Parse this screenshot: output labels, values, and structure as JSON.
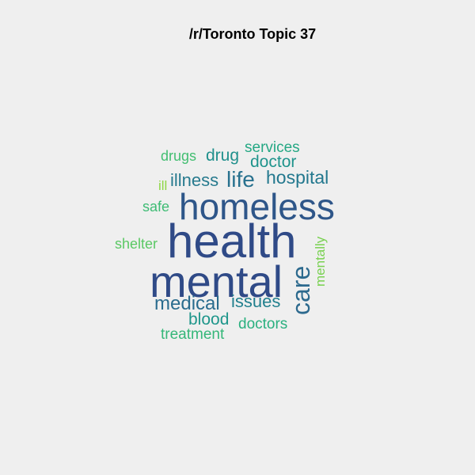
{
  "title": "/r/Toronto Topic 37",
  "words": [
    {
      "text": "health",
      "weight": 1.0,
      "color": "#2f4a87",
      "rotated": false
    },
    {
      "text": "mental",
      "weight": 0.95,
      "color": "#2f4a87",
      "rotated": false
    },
    {
      "text": "homeless",
      "weight": 0.78,
      "color": "#2e5689",
      "rotated": false
    },
    {
      "text": "care",
      "weight": 0.52,
      "color": "#2d6a8e",
      "rotated": true
    },
    {
      "text": "life",
      "weight": 0.4,
      "color": "#28718e",
      "rotated": false
    },
    {
      "text": "medical",
      "weight": 0.38,
      "color": "#2a6c8e",
      "rotated": false
    },
    {
      "text": "hospital",
      "weight": 0.36,
      "color": "#23788e",
      "rotated": false
    },
    {
      "text": "issues",
      "weight": 0.34,
      "color": "#22808e",
      "rotated": false
    },
    {
      "text": "illness",
      "weight": 0.33,
      "color": "#277a8e",
      "rotated": false
    },
    {
      "text": "doctor",
      "weight": 0.32,
      "color": "#1f948c",
      "rotated": false
    },
    {
      "text": "drug",
      "weight": 0.31,
      "color": "#20908c",
      "rotated": false
    },
    {
      "text": "blood",
      "weight": 0.3,
      "color": "#1f968b",
      "rotated": false
    },
    {
      "text": "services",
      "weight": 0.29,
      "color": "#25a884",
      "rotated": false
    },
    {
      "text": "doctors",
      "weight": 0.27,
      "color": "#2ab07f",
      "rotated": false
    },
    {
      "text": "treatment",
      "weight": 0.27,
      "color": "#35b779",
      "rotated": false
    },
    {
      "text": "safe",
      "weight": 0.26,
      "color": "#3ebc74",
      "rotated": false
    },
    {
      "text": "drugs",
      "weight": 0.26,
      "color": "#42be71",
      "rotated": false
    },
    {
      "text": "shelter",
      "weight": 0.26,
      "color": "#5ac864",
      "rotated": false
    },
    {
      "text": "mentally",
      "weight": 0.25,
      "color": "#79d151",
      "rotated": true
    },
    {
      "text": "ill",
      "weight": 0.24,
      "color": "#8ed645",
      "rotated": false
    }
  ]
}
